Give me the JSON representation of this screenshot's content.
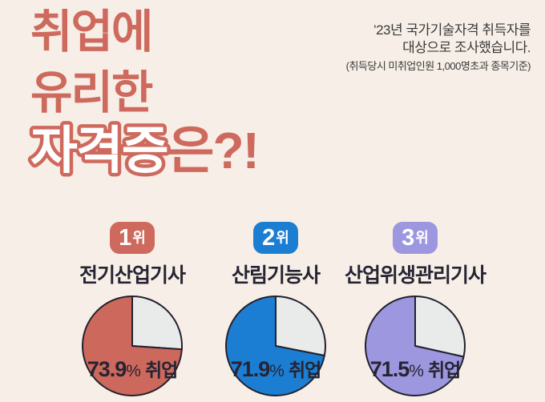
{
  "colors": {
    "background": "#F7EFE7",
    "coral": "#CE6A5D",
    "blue": "#1B7ED3",
    "purple": "#9C97DE",
    "pie_remainder": "#E9EBEB",
    "pie_outline": "#23212E",
    "text_dark": "#262433",
    "subtitle_text": "#3A3A3A"
  },
  "title": {
    "line1": "취업에",
    "line2": "유리한",
    "line3_outlined": "자격증",
    "line3_rest": "은?!"
  },
  "subtitle": {
    "line1": "’23년 국가기술자격 취득자를",
    "line2": "대상으로 조사했습니다.",
    "line3": "(취득당시 미취업인원 1,000명초과 종목기준)"
  },
  "rankings": [
    {
      "rank": "1",
      "rank_suffix": "위",
      "badge_color": "#CE6A5D",
      "name": "전기산업기사",
      "pie_color": "#CC685C",
      "percent": 73.9,
      "percent_text": "73.9",
      "unit": "%",
      "label": "취업"
    },
    {
      "rank": "2",
      "rank_suffix": "위",
      "badge_color": "#1B7ED3",
      "name": "산림기능사",
      "pie_color": "#1B7ED3",
      "percent": 71.9,
      "percent_text": "71.9",
      "unit": "%",
      "label": "취업"
    },
    {
      "rank": "3",
      "rank_suffix": "위",
      "badge_color": "#9C97DE",
      "name": "산업위생관리기사",
      "pie_color": "#9C97DE",
      "percent": 71.5,
      "percent_text": "71.5",
      "unit": "%",
      "label": "취업"
    }
  ],
  "chart_data": [
    {
      "type": "pie",
      "title": "전기산업기사",
      "slices": [
        {
          "label": "취업",
          "value": 73.9
        },
        {
          "label": "",
          "value": 26.1
        }
      ],
      "start": "12-oclock",
      "direction": "clockwise"
    },
    {
      "type": "pie",
      "title": "산림기능사",
      "slices": [
        {
          "label": "취업",
          "value": 71.9
        },
        {
          "label": "",
          "value": 28.1
        }
      ],
      "start": "12-oclock",
      "direction": "clockwise"
    },
    {
      "type": "pie",
      "title": "산업위생관리기사",
      "slices": [
        {
          "label": "취업",
          "value": 71.5
        },
        {
          "label": "",
          "value": 28.5
        }
      ],
      "start": "12-oclock",
      "direction": "clockwise"
    }
  ]
}
